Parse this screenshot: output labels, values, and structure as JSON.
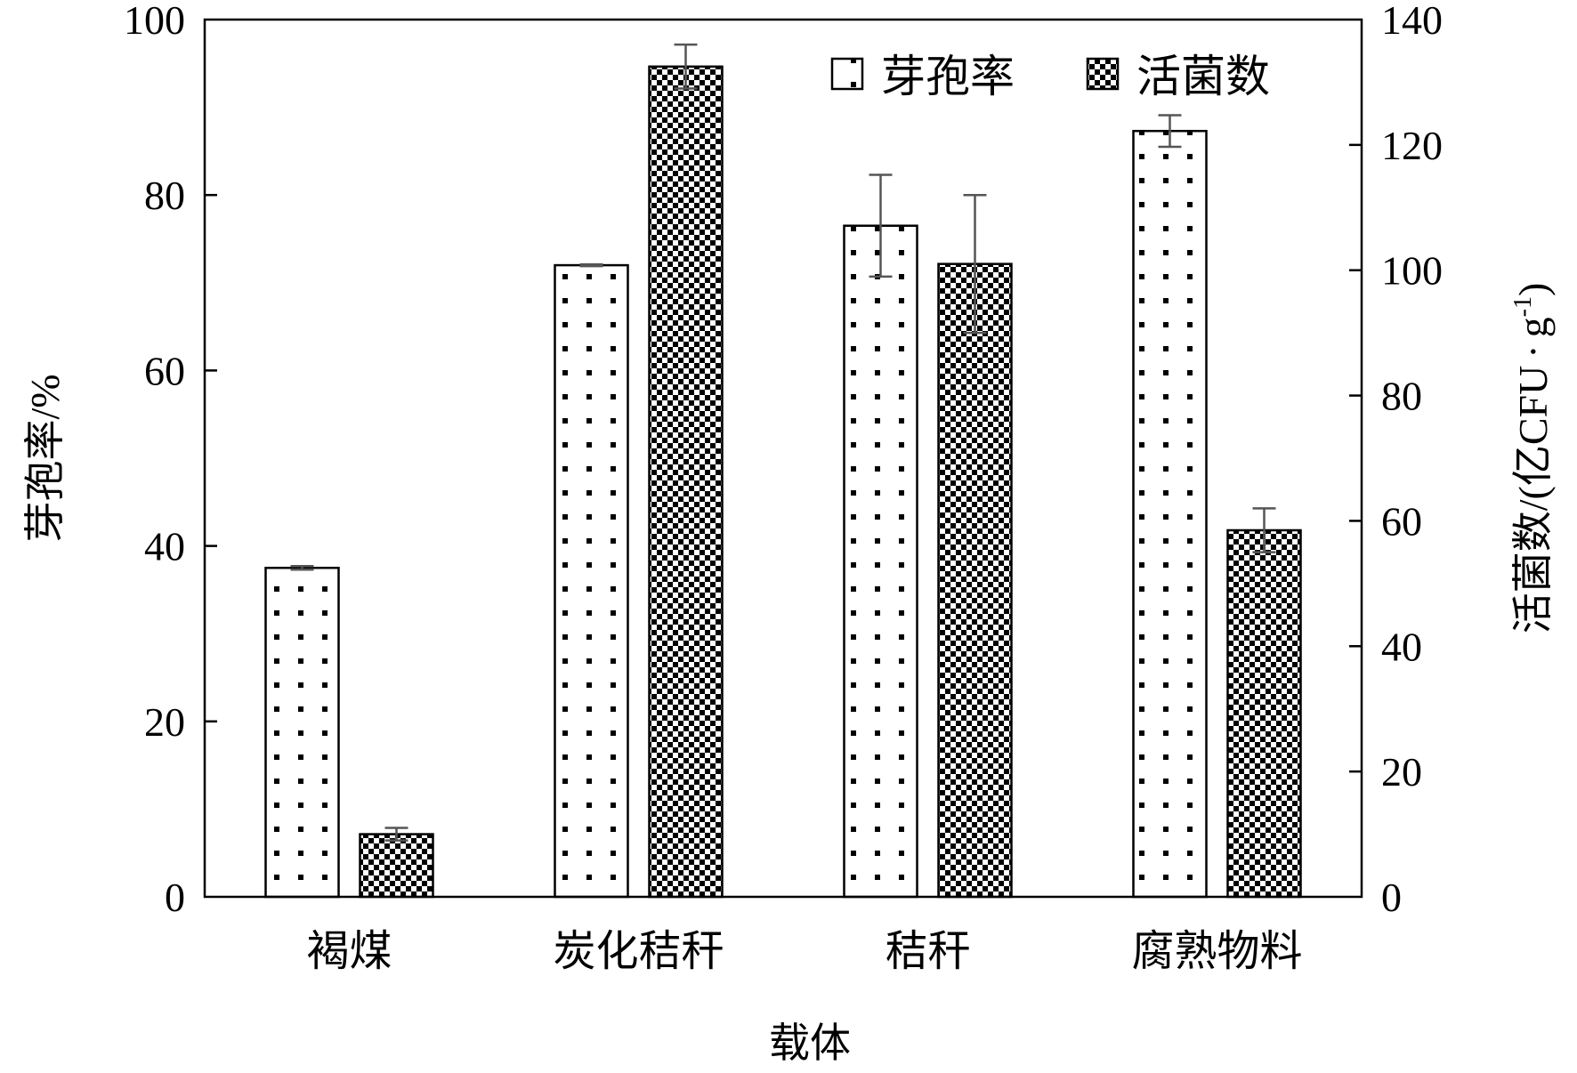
{
  "chart_data": {
    "type": "bar",
    "xlabel": "载体",
    "ylabel_left": "芽孢率/%",
    "ylabel_right_main": "活菌数/(亿CFU",
    "ylabel_right_dot": "·",
    "ylabel_right_unit": "g",
    "ylabel_right_exp": "-1",
    "ylabel_right_close": ")",
    "categories": [
      "褐煤",
      "炭化秸秆",
      "秸秆",
      "腐熟物料"
    ],
    "ylim_left": [
      0,
      100
    ],
    "yticks_left": [
      0,
      20,
      40,
      60,
      80,
      100
    ],
    "ylim_right": [
      0,
      140
    ],
    "yticks_right": [
      0,
      20,
      40,
      60,
      80,
      100,
      120,
      140
    ],
    "grid": false,
    "legend_position": "top-right",
    "series": [
      {
        "name": "芽孢率",
        "axis": "left",
        "pattern": "dots",
        "values": [
          37.5,
          72.0,
          76.5,
          87.3
        ],
        "errors": [
          0.2,
          0.1,
          5.8,
          1.8
        ]
      },
      {
        "name": "活菌数",
        "axis": "right",
        "pattern": "checker",
        "values": [
          10.0,
          132.5,
          101.0,
          58.5
        ],
        "errors": [
          1.0,
          3.5,
          11.0,
          3.5
        ]
      }
    ]
  }
}
